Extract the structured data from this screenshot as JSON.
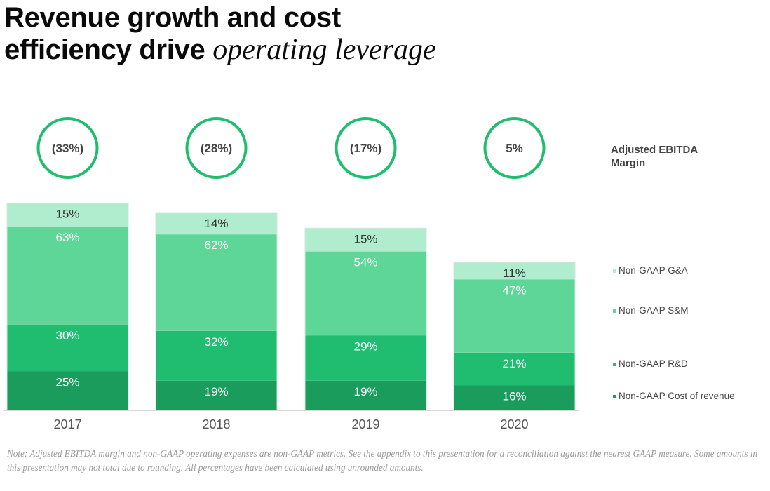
{
  "title": {
    "line1": "Revenue growth and cost",
    "line2_bold": "efficiency drive",
    "line2_italic": "operating leverage"
  },
  "chart_data": {
    "type": "bar",
    "stacked": true,
    "categories": [
      "2017",
      "2018",
      "2019",
      "2020"
    ],
    "series": [
      {
        "name": "Non-GAAP Cost of revenue",
        "values": [
          25,
          19,
          19,
          16
        ],
        "labels": [
          "25%",
          "19%",
          "19%",
          "16%"
        ],
        "color": "#1a9c5c"
      },
      {
        "name": "Non-GAAP R&D",
        "values": [
          30,
          32,
          29,
          21
        ],
        "labels": [
          "30%",
          "32%",
          "29%",
          "21%"
        ],
        "color": "#20bd70"
      },
      {
        "name": "Non-GAAP S&M",
        "values": [
          63,
          62,
          54,
          47
        ],
        "labels": [
          "63%",
          "62%",
          "54%",
          "47%"
        ],
        "color": "#5dd697"
      },
      {
        "name": "Non-GAAP G&A",
        "values": [
          15,
          14,
          15,
          11
        ],
        "labels": [
          "15%",
          "14%",
          "15%",
          "11%"
        ],
        "color": "#b0ecce"
      }
    ],
    "margin": {
      "label": "Adjusted EBITDA Margin",
      "values": [
        -33,
        -28,
        -17,
        5
      ],
      "labels": [
        "(33%)",
        "(28%)",
        "(17%)",
        "5%"
      ],
      "color": "#1fbe6e"
    },
    "legend_position": "right",
    "grid": false
  },
  "note": "Note: Adjusted EBITDA margin and non-GAAP operating expenses are non-GAAP metrics. See the appendix to this presentation for a reconciliation against the nearest GAAP measure. Some amounts in this presentation may not total due to rounding. All percentages have been calculated using unrounded amounts."
}
